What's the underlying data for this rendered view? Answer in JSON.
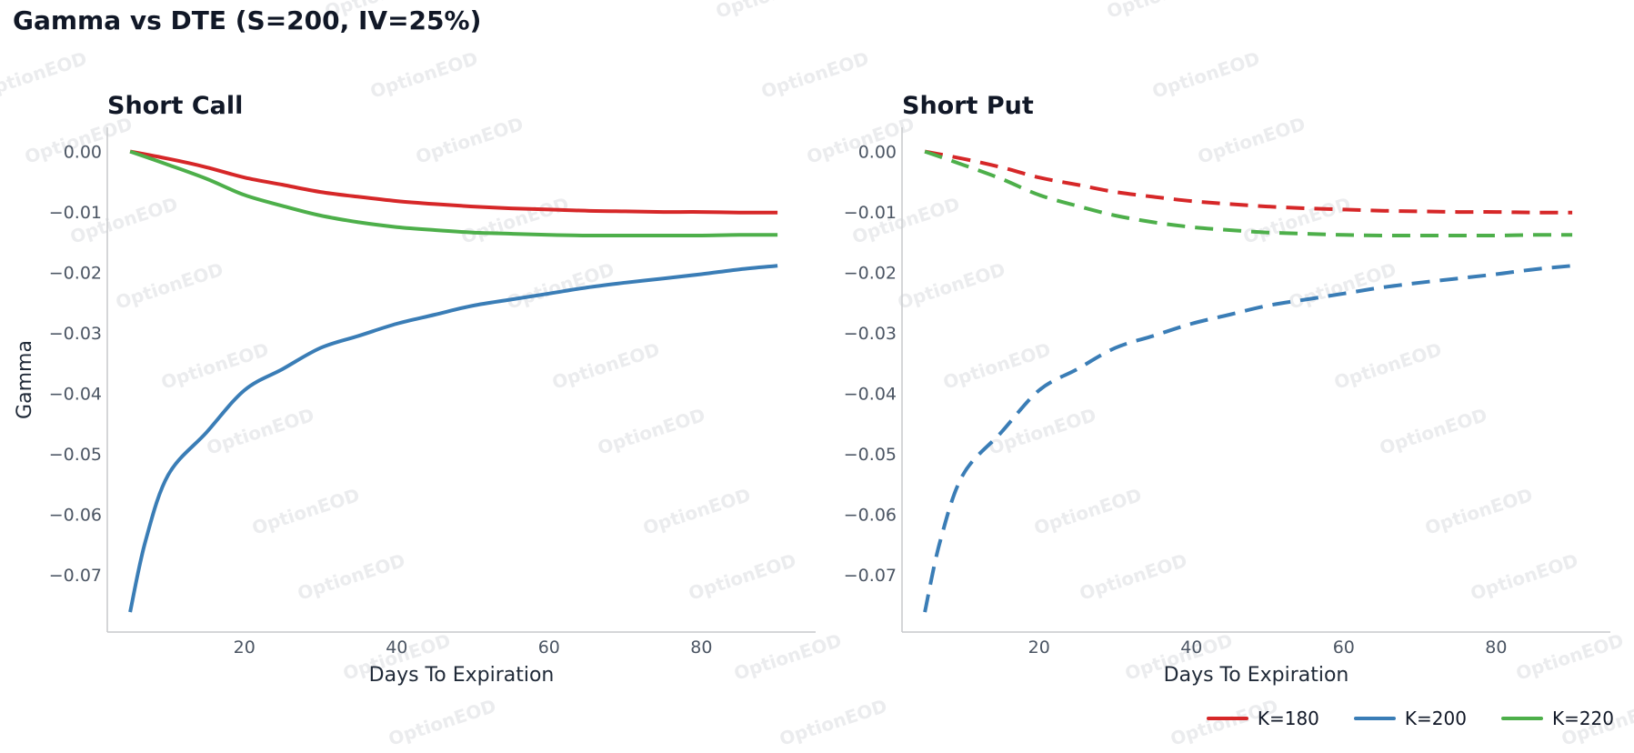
{
  "figure": {
    "title": "Gamma vs DTE (S=200, IV=25%)",
    "watermark_text": "OptionEOD"
  },
  "legend": [
    {
      "label": "K=180",
      "color": "#d62728"
    },
    {
      "label": "K=200",
      "color": "#3a7db6"
    },
    {
      "label": "K=220",
      "color": "#4daf4a"
    }
  ],
  "chart_data": [
    {
      "type": "line",
      "title": "Short Call",
      "xlabel": "Days To Expiration",
      "ylabel": "Gamma",
      "xlim": [
        2,
        95
      ],
      "ylim": [
        -0.0795,
        0.004
      ],
      "xticks": [
        20,
        40,
        60,
        80
      ],
      "yticks": [
        0.0,
        -0.01,
        -0.02,
        -0.03,
        -0.04,
        -0.05,
        -0.06,
        -0.07
      ],
      "ytick_labels": [
        "0.00",
        "−0.01",
        "−0.02",
        "−0.03",
        "−0.04",
        "−0.05",
        "−0.06",
        "−0.07"
      ],
      "line_style": "solid",
      "series": [
        {
          "name": "K=180",
          "color": "#d62728",
          "x": [
            5,
            10,
            15,
            20,
            25,
            30,
            35,
            40,
            45,
            50,
            55,
            60,
            65,
            70,
            75,
            80,
            85,
            90
          ],
          "y": [
            0.0,
            -0.0012,
            -0.0026,
            -0.0043,
            -0.0055,
            -0.0067,
            -0.0075,
            -0.0082,
            -0.0087,
            -0.0091,
            -0.0094,
            -0.0096,
            -0.0098,
            -0.0099,
            -0.01,
            -0.01,
            -0.0101,
            -0.0101
          ]
        },
        {
          "name": "K=200",
          "color": "#3a7db6",
          "x": [
            5,
            7,
            10,
            15,
            20,
            25,
            30,
            35,
            40,
            45,
            50,
            55,
            60,
            65,
            70,
            75,
            80,
            85,
            90
          ],
          "y": [
            -0.0762,
            -0.0645,
            -0.0535,
            -0.0465,
            -0.0395,
            -0.036,
            -0.0325,
            -0.0305,
            -0.0285,
            -0.027,
            -0.0255,
            -0.0245,
            -0.0235,
            -0.0225,
            -0.0217,
            -0.021,
            -0.0203,
            -0.0195,
            -0.0189
          ]
        },
        {
          "name": "K=220",
          "color": "#4daf4a",
          "x": [
            5,
            10,
            15,
            20,
            25,
            30,
            35,
            40,
            45,
            50,
            55,
            60,
            65,
            70,
            75,
            80,
            85,
            90
          ],
          "y": [
            0.0,
            -0.0022,
            -0.0045,
            -0.0072,
            -0.009,
            -0.0106,
            -0.0117,
            -0.0125,
            -0.013,
            -0.0134,
            -0.0136,
            -0.0138,
            -0.0139,
            -0.0139,
            -0.0139,
            -0.0139,
            -0.0138,
            -0.0138
          ]
        }
      ]
    },
    {
      "type": "line",
      "title": "Short Put",
      "xlabel": "Days To Expiration",
      "ylabel": "",
      "xlim": [
        2,
        95
      ],
      "ylim": [
        -0.0795,
        0.004
      ],
      "xticks": [
        20,
        40,
        60,
        80
      ],
      "yticks": [
        0.0,
        -0.01,
        -0.02,
        -0.03,
        -0.04,
        -0.05,
        -0.06,
        -0.07
      ],
      "ytick_labels": [
        "0.00",
        "−0.01",
        "−0.02",
        "−0.03",
        "−0.04",
        "−0.05",
        "−0.06",
        "−0.07"
      ],
      "line_style": "dashed",
      "series": [
        {
          "name": "K=180",
          "color": "#d62728",
          "x": [
            5,
            10,
            15,
            20,
            25,
            30,
            35,
            40,
            45,
            50,
            55,
            60,
            65,
            70,
            75,
            80,
            85,
            90
          ],
          "y": [
            0.0,
            -0.0012,
            -0.0026,
            -0.0043,
            -0.0055,
            -0.0067,
            -0.0075,
            -0.0082,
            -0.0087,
            -0.0091,
            -0.0094,
            -0.0096,
            -0.0098,
            -0.0099,
            -0.01,
            -0.01,
            -0.0101,
            -0.0101
          ]
        },
        {
          "name": "K=200",
          "color": "#3a7db6",
          "x": [
            5,
            7,
            10,
            15,
            20,
            25,
            30,
            35,
            40,
            45,
            50,
            55,
            60,
            65,
            70,
            75,
            80,
            85,
            90
          ],
          "y": [
            -0.0762,
            -0.0645,
            -0.0535,
            -0.0465,
            -0.0395,
            -0.036,
            -0.0325,
            -0.0305,
            -0.0285,
            -0.027,
            -0.0255,
            -0.0245,
            -0.0235,
            -0.0225,
            -0.0217,
            -0.021,
            -0.0203,
            -0.0195,
            -0.0189
          ]
        },
        {
          "name": "K=220",
          "color": "#4daf4a",
          "x": [
            5,
            10,
            15,
            20,
            25,
            30,
            35,
            40,
            45,
            50,
            55,
            60,
            65,
            70,
            75,
            80,
            85,
            90
          ],
          "y": [
            0.0,
            -0.0022,
            -0.0045,
            -0.0072,
            -0.009,
            -0.0106,
            -0.0117,
            -0.0125,
            -0.013,
            -0.0134,
            -0.0136,
            -0.0138,
            -0.0139,
            -0.0139,
            -0.0139,
            -0.0139,
            -0.0138,
            -0.0138
          ]
        }
      ]
    }
  ]
}
